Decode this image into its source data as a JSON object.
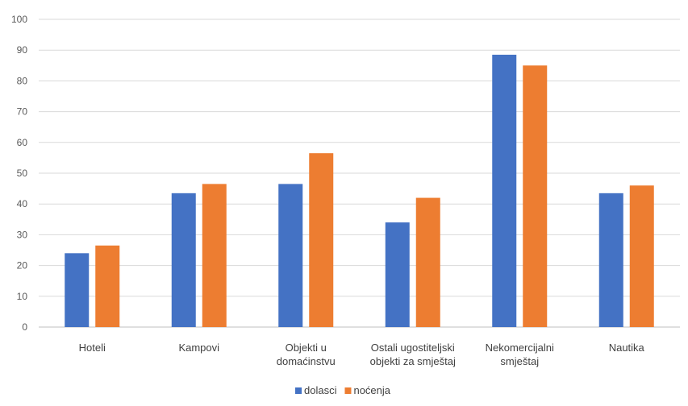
{
  "chart_data": {
    "type": "bar",
    "title": "",
    "xlabel": "",
    "ylabel": "",
    "ylim": [
      0,
      100
    ],
    "yticks": [
      0,
      10,
      20,
      30,
      40,
      50,
      60,
      70,
      80,
      90,
      100
    ],
    "grid": true,
    "legend_position": "bottom",
    "categories": [
      [
        "Hoteli"
      ],
      [
        "Kampovi"
      ],
      [
        "Objekti u",
        "domaćinstvu"
      ],
      [
        "Ostali ugostiteljski",
        "objekti za smještaj"
      ],
      [
        "Nekomercijalni",
        "smještaj"
      ],
      [
        "Nautika"
      ]
    ],
    "series": [
      {
        "name": "dolasci",
        "color": "#4472c4",
        "values": [
          24,
          43.5,
          46.5,
          34,
          88.5,
          43.5
        ]
      },
      {
        "name": "noćenja",
        "color": "#ed7d31",
        "values": [
          26.5,
          46.5,
          56.5,
          42,
          85,
          46
        ]
      }
    ]
  }
}
